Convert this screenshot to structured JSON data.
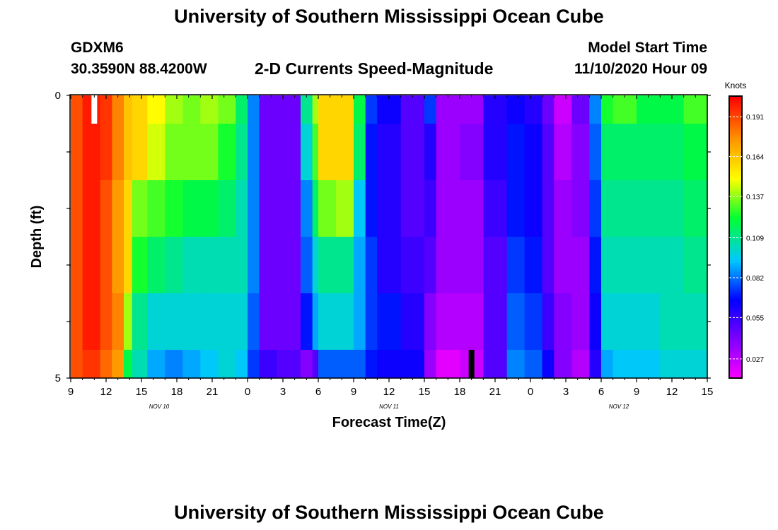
{
  "header": {
    "title": "University of Southern Mississippi Ocean Cube",
    "station_id": "GDXM6",
    "coordinates": "30.3590N 88.4200W",
    "plot_title": "2-D Currents Speed-Magnitude",
    "model_start_label": "Model Start Time",
    "model_start_value": "11/10/2020 Hour 09"
  },
  "footer": {
    "title": "University of Southern Mississippi Ocean Cube"
  },
  "chart_data": {
    "type": "heatmap",
    "title": "2-D Currents Speed-Magnitude",
    "xlabel": "Forecast Time(Z)",
    "ylabel": "Depth (ft)",
    "x_hours_range": [
      0,
      54
    ],
    "x_tick_labels": [
      "9",
      "12",
      "15",
      "18",
      "21",
      "0",
      "3",
      "6",
      "9",
      "12",
      "15",
      "18",
      "21",
      "0",
      "3",
      "6",
      "9",
      "12",
      "15"
    ],
    "date_labels": [
      {
        "label": "NOV  10",
        "hour": 7.5
      },
      {
        "label": "NOV  11",
        "hour": 27
      },
      {
        "label": "NOV  12",
        "hour": 46.5
      }
    ],
    "y_tick_labels": [
      "0",
      "5"
    ],
    "ylim": [
      0,
      5
    ],
    "colorbar": {
      "title": "Knots",
      "range": [
        0.014,
        0.205
      ],
      "tick_values": [
        0.191,
        0.164,
        0.137,
        0.109,
        0.082,
        0.055,
        0.027
      ],
      "tick_labels": [
        "0.191",
        "0.164",
        "0.137",
        "0.109",
        "0.082",
        "0.055",
        "0.027"
      ]
    },
    "layer_ranges_ft": [
      [
        0,
        0.5
      ],
      [
        0.5,
        1.5
      ],
      [
        1.5,
        2.5
      ],
      [
        2.5,
        3.5
      ],
      [
        3.5,
        4.5
      ],
      [
        4.5,
        5
      ]
    ],
    "columns": [
      {
        "start": 0,
        "end": 1,
        "values": [
          0.19,
          0.19,
          0.19,
          0.19,
          0.19,
          0.19
        ]
      },
      {
        "start": 1,
        "end": 2.5,
        "values": [
          0.2,
          0.2,
          0.2,
          0.2,
          0.2,
          0.195
        ]
      },
      {
        "start": 2.5,
        "end": 3.5,
        "values": [
          0.195,
          0.195,
          0.19,
          0.19,
          0.19,
          0.185
        ]
      },
      {
        "start": 3.5,
        "end": 4.5,
        "values": [
          0.18,
          0.18,
          0.175,
          0.175,
          0.18,
          0.175
        ]
      },
      {
        "start": 4.5,
        "end": 5.2,
        "values": [
          0.165,
          0.165,
          0.16,
          0.16,
          0.14,
          0.12
        ]
      },
      {
        "start": 5.2,
        "end": 6.5,
        "values": [
          0.16,
          0.16,
          0.135,
          0.125,
          0.11,
          0.105
        ]
      },
      {
        "start": 6.5,
        "end": 8,
        "values": [
          0.15,
          0.145,
          0.13,
          0.115,
          0.1,
          0.09
        ]
      },
      {
        "start": 8,
        "end": 9.5,
        "values": [
          0.14,
          0.135,
          0.125,
          0.11,
          0.1,
          0.085
        ]
      },
      {
        "start": 9.5,
        "end": 11,
        "values": [
          0.135,
          0.135,
          0.12,
          0.105,
          0.1,
          0.09
        ]
      },
      {
        "start": 11,
        "end": 12.5,
        "values": [
          0.14,
          0.135,
          0.12,
          0.105,
          0.1,
          0.095
        ]
      },
      {
        "start": 12.5,
        "end": 14,
        "values": [
          0.135,
          0.125,
          0.115,
          0.105,
          0.1,
          0.1
        ]
      },
      {
        "start": 14,
        "end": 15,
        "values": [
          0.115,
          0.11,
          0.105,
          0.105,
          0.1,
          0.095
        ]
      },
      {
        "start": 15,
        "end": 16,
        "values": [
          0.085,
          0.085,
          0.085,
          0.085,
          0.08,
          0.075
        ]
      },
      {
        "start": 16,
        "end": 17.5,
        "values": [
          0.045,
          0.045,
          0.045,
          0.045,
          0.045,
          0.055
        ]
      },
      {
        "start": 17.5,
        "end": 19.5,
        "values": [
          0.045,
          0.045,
          0.045,
          0.045,
          0.045,
          0.05
        ]
      },
      {
        "start": 19.5,
        "end": 20.5,
        "values": [
          0.11,
          0.1,
          0.085,
          0.08,
          0.07,
          0.04
        ]
      },
      {
        "start": 20.5,
        "end": 21,
        "values": [
          0.14,
          0.13,
          0.115,
          0.1,
          0.09,
          0.05
        ]
      },
      {
        "start": 21,
        "end": 22.5,
        "values": [
          0.16,
          0.16,
          0.135,
          0.11,
          0.1,
          0.08
        ]
      },
      {
        "start": 22.5,
        "end": 24,
        "values": [
          0.16,
          0.16,
          0.14,
          0.11,
          0.1,
          0.08
        ]
      },
      {
        "start": 24,
        "end": 25,
        "values": [
          0.12,
          0.115,
          0.095,
          0.09,
          0.09,
          0.08
        ]
      },
      {
        "start": 25,
        "end": 26,
        "values": [
          0.075,
          0.07,
          0.07,
          0.075,
          0.075,
          0.07
        ]
      },
      {
        "start": 26,
        "end": 28,
        "values": [
          0.065,
          0.06,
          0.06,
          0.06,
          0.07,
          0.065
        ]
      },
      {
        "start": 28,
        "end": 30,
        "values": [
          0.05,
          0.05,
          0.05,
          0.055,
          0.06,
          0.065
        ]
      },
      {
        "start": 30,
        "end": 31,
        "values": [
          0.075,
          0.06,
          0.055,
          0.05,
          0.04,
          0.035
        ]
      },
      {
        "start": 31,
        "end": 33,
        "values": [
          0.035,
          0.035,
          0.035,
          0.035,
          0.03,
          0.02
        ]
      },
      {
        "start": 33,
        "end": 35,
        "values": [
          0.035,
          0.04,
          0.035,
          0.035,
          0.03,
          0.025
        ]
      },
      {
        "start": 35,
        "end": 37,
        "values": [
          0.06,
          0.06,
          0.055,
          0.05,
          0.05,
          0.05
        ]
      },
      {
        "start": 37,
        "end": 38.5,
        "values": [
          0.065,
          0.07,
          0.07,
          0.075,
          0.08,
          0.085
        ]
      },
      {
        "start": 38.5,
        "end": 40,
        "values": [
          0.06,
          0.065,
          0.065,
          0.07,
          0.075,
          0.08
        ]
      },
      {
        "start": 40,
        "end": 41,
        "values": [
          0.045,
          0.05,
          0.05,
          0.05,
          0.055,
          0.065
        ]
      },
      {
        "start": 41,
        "end": 42.5,
        "values": [
          0.025,
          0.03,
          0.035,
          0.035,
          0.04,
          0.04
        ]
      },
      {
        "start": 42.5,
        "end": 44,
        "values": [
          0.045,
          0.04,
          0.04,
          0.035,
          0.035,
          0.03
        ]
      },
      {
        "start": 44,
        "end": 45,
        "values": [
          0.085,
          0.08,
          0.075,
          0.07,
          0.065,
          0.06
        ]
      },
      {
        "start": 45,
        "end": 46,
        "values": [
          0.125,
          0.115,
          0.11,
          0.105,
          0.1,
          0.09
        ]
      },
      {
        "start": 46,
        "end": 48,
        "values": [
          0.13,
          0.115,
          0.11,
          0.105,
          0.1,
          0.095
        ]
      },
      {
        "start": 48,
        "end": 50,
        "values": [
          0.12,
          0.115,
          0.11,
          0.105,
          0.1,
          0.095
        ]
      },
      {
        "start": 50,
        "end": 52,
        "values": [
          0.12,
          0.115,
          0.11,
          0.105,
          0.105,
          0.1
        ]
      },
      {
        "start": 52,
        "end": 54,
        "values": [
          0.13,
          0.12,
          0.115,
          0.11,
          0.105,
          0.1
        ]
      }
    ],
    "annotations": [
      {
        "name": "white-marker",
        "hour": 2,
        "depth_ft": [
          0,
          0.5
        ],
        "color": "#ffffff"
      },
      {
        "name": "black-marker",
        "hour": 34,
        "depth_ft": [
          4.5,
          5
        ],
        "color": "#000000"
      }
    ]
  }
}
